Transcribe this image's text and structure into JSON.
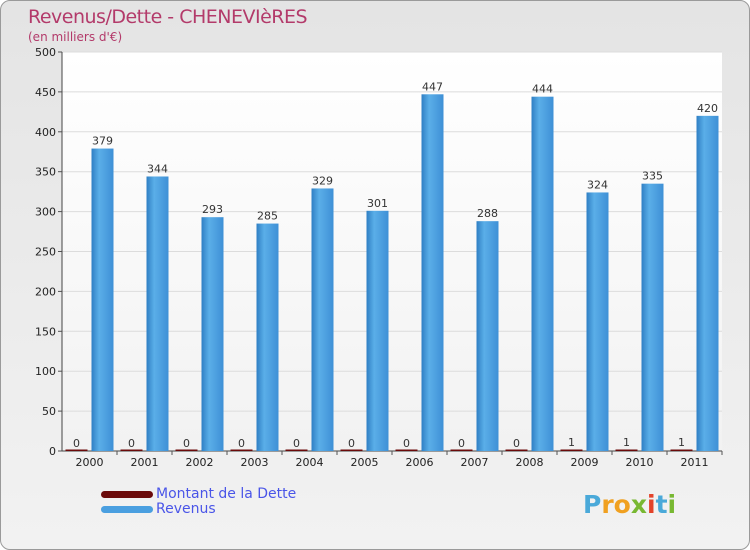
{
  "chart_data": {
    "type": "bar",
    "title": "Revenus/Dette - CHENEVIèRES",
    "subtitle": "(en milliers d'€)",
    "categories": [
      "2000",
      "2001",
      "2002",
      "2003",
      "2004",
      "2005",
      "2006",
      "2007",
      "2008",
      "2009",
      "2010",
      "2011"
    ],
    "series": [
      {
        "name": "Montant de la Dette",
        "color": "#6b0a0a",
        "values": [
          0,
          0,
          0,
          0,
          0,
          0,
          0,
          0,
          0,
          1,
          1,
          1
        ]
      },
      {
        "name": "Revenus",
        "color": "#4a9fe0",
        "values": [
          379,
          344,
          293,
          285,
          329,
          301,
          447,
          288,
          444,
          324,
          335,
          420
        ]
      }
    ],
    "yticks": [
      0,
      50,
      100,
      150,
      200,
      250,
      300,
      350,
      400,
      450,
      500
    ],
    "ylim": [
      0,
      500
    ],
    "grid": true,
    "legend_position": "bottom-left"
  },
  "legend": {
    "debt_label": "Montant de la Dette",
    "revenue_label": "Revenus",
    "debt_color": "#6b0a0a",
    "revenue_color": "#4a9fe0"
  },
  "logo": {
    "letters": [
      "P",
      "r",
      "o",
      "x",
      "i",
      "t",
      "i"
    ]
  }
}
